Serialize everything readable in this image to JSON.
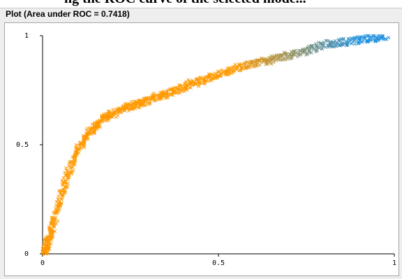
{
  "top_strip_text": "ng the ROC curve of the selected mode...",
  "panel": {
    "title": "Plot (Area under ROC = 0.7418)"
  },
  "chart_data": {
    "type": "scatter",
    "title": "",
    "xlabel": "",
    "ylabel": "",
    "xlim": [
      0,
      1
    ],
    "ylim": [
      0,
      1
    ],
    "grid": false,
    "marker": "x",
    "x_ticks": [
      "0",
      "0.5",
      "1"
    ],
    "y_ticks": [
      "0",
      "0.5",
      "1"
    ],
    "color_start": "#ff9900",
    "color_end": "#1e90dd",
    "curve": {
      "x": [
        0.0,
        0.005,
        0.01,
        0.015,
        0.02,
        0.03,
        0.04,
        0.05,
        0.06,
        0.07,
        0.08,
        0.09,
        0.1,
        0.12,
        0.14,
        0.16,
        0.18,
        0.2,
        0.22,
        0.25,
        0.28,
        0.3,
        0.32,
        0.35,
        0.38,
        0.4,
        0.42,
        0.45,
        0.48,
        0.5,
        0.55,
        0.6,
        0.65,
        0.7,
        0.75,
        0.8,
        0.85,
        0.9,
        0.95,
        1.0
      ],
      "y": [
        0.0,
        0.01,
        0.03,
        0.05,
        0.08,
        0.14,
        0.2,
        0.26,
        0.31,
        0.36,
        0.4,
        0.44,
        0.48,
        0.53,
        0.57,
        0.6,
        0.63,
        0.64,
        0.66,
        0.68,
        0.69,
        0.7,
        0.72,
        0.73,
        0.75,
        0.76,
        0.78,
        0.79,
        0.81,
        0.82,
        0.85,
        0.87,
        0.89,
        0.91,
        0.93,
        0.96,
        0.97,
        0.98,
        0.99,
        1.0
      ]
    }
  }
}
